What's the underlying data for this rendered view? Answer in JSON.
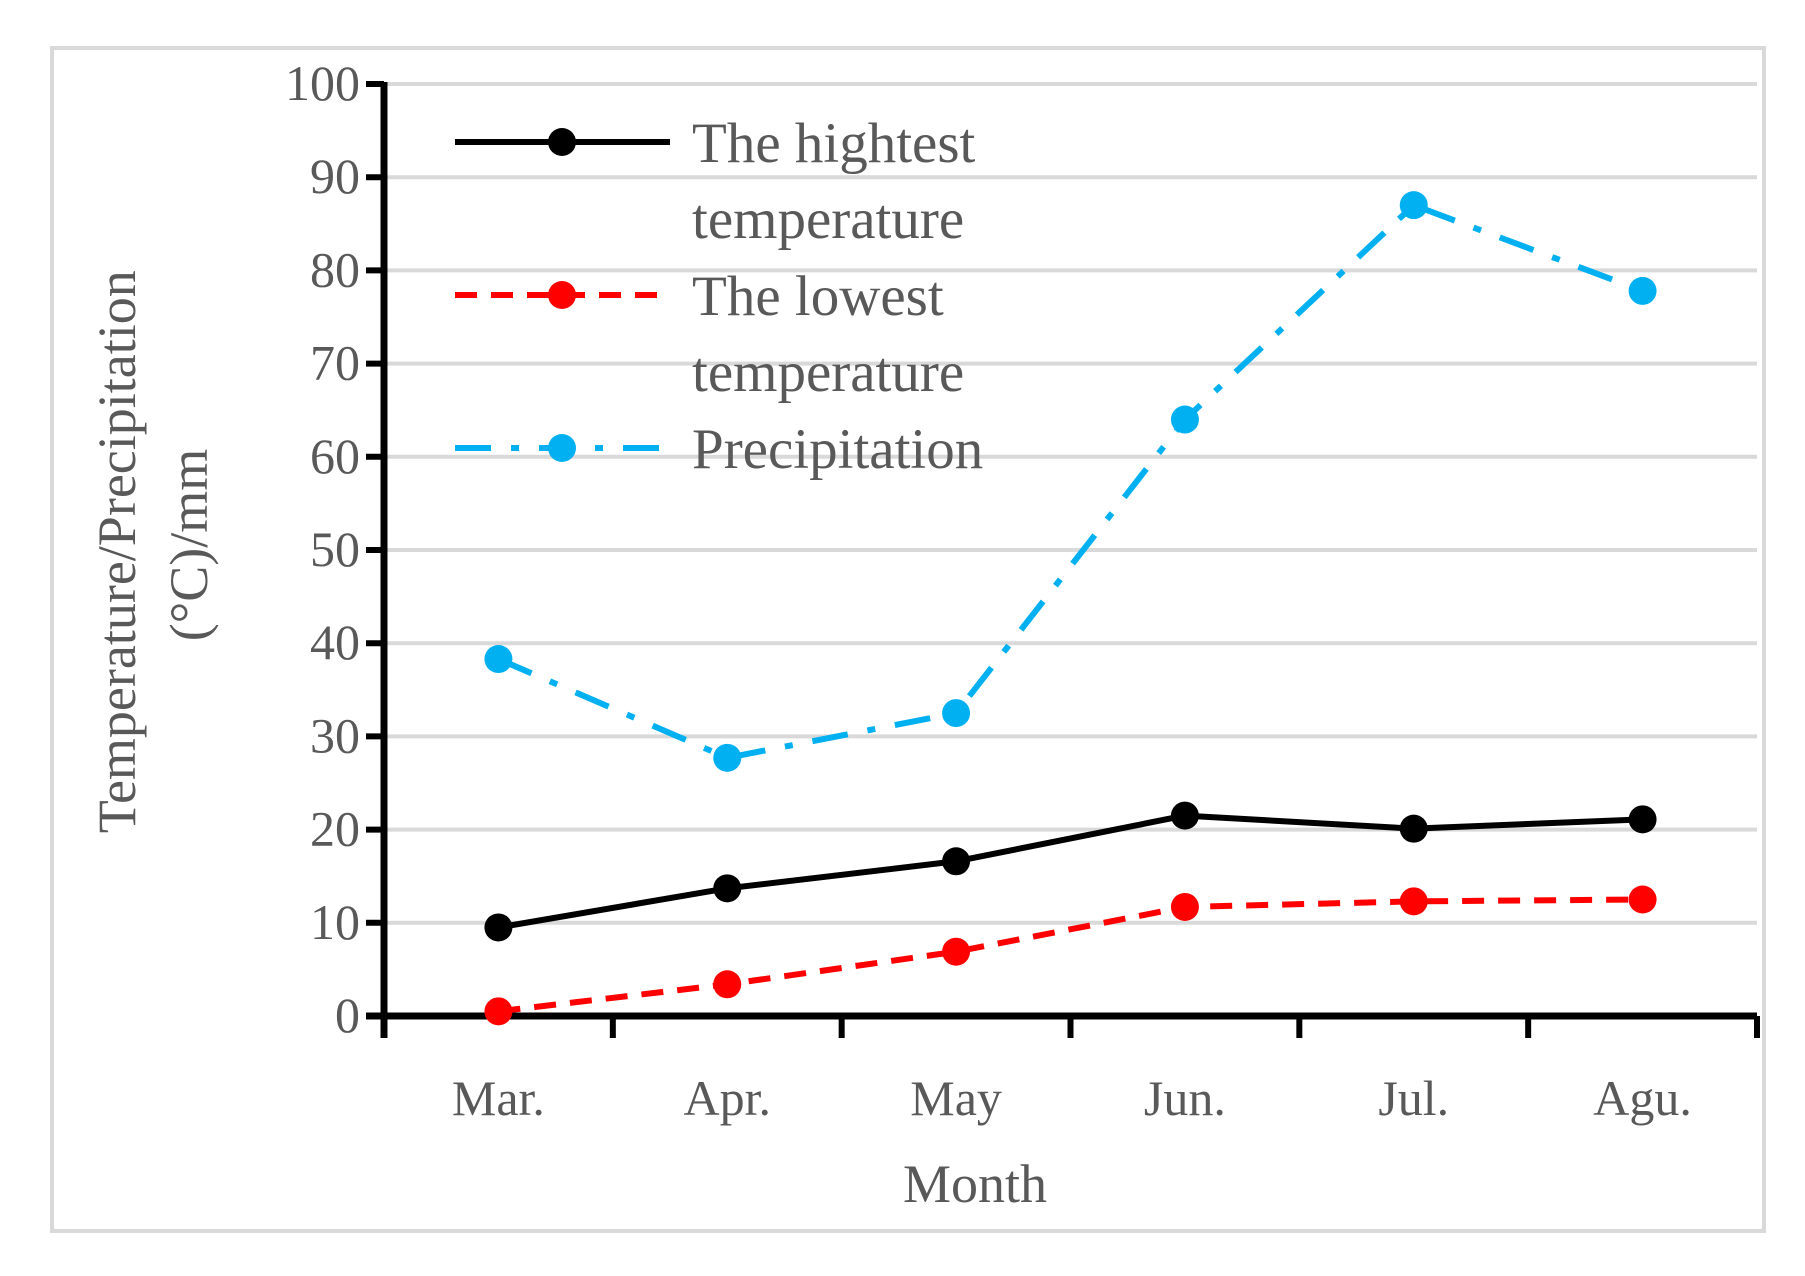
{
  "chart_data": {
    "type": "line",
    "categories": [
      "Mar.",
      "Apr.",
      "May",
      "Jun.",
      "Jul.",
      "Agu."
    ],
    "series": [
      {
        "name": "The hightest temperature",
        "values": [
          9.5,
          13.7,
          16.6,
          21.5,
          20.1,
          21.1
        ],
        "color": "#000000",
        "dash": "solid"
      },
      {
        "name": "The lowest temperature",
        "values": [
          0.5,
          3.4,
          6.9,
          11.7,
          12.3,
          12.5
        ],
        "color": "#ff0000",
        "dash": "dash"
      },
      {
        "name": "Precipitation",
        "values": [
          38.3,
          27.7,
          32.5,
          64.0,
          87.0,
          77.8
        ],
        "color": "#00b0f0",
        "dash": "dash-dot"
      }
    ],
    "legend_lines": [
      [
        "The hightest",
        "temperature"
      ],
      [
        "The lowest",
        "temperature"
      ],
      [
        "Precipitation"
      ]
    ],
    "xlabel": "Month",
    "ylabel_lines": [
      "Temperature/Precipitation",
      "(°C)/mm"
    ],
    "ylim": [
      0,
      100
    ],
    "yticks": [
      0,
      10,
      20,
      30,
      40,
      50,
      60,
      70,
      80,
      90,
      100
    ],
    "grid": true,
    "legend_position": "top-left"
  }
}
